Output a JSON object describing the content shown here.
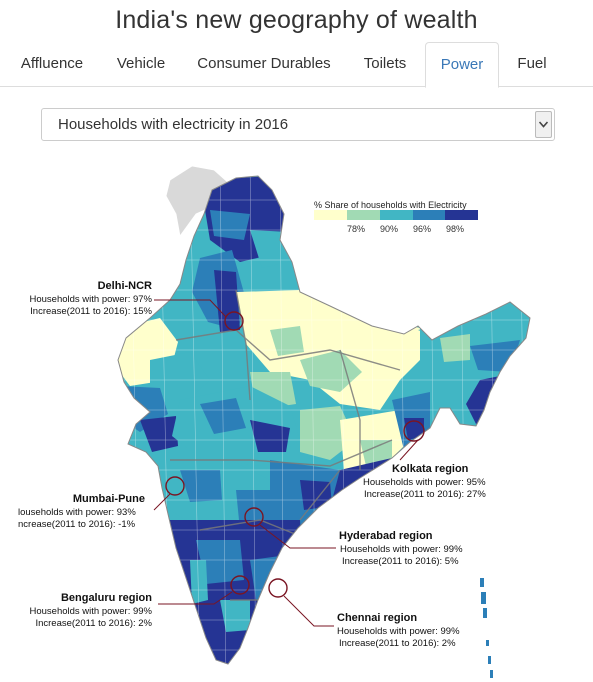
{
  "page": {
    "title": "India's new geography of wealth"
  },
  "tabs": [
    {
      "label": "Affluence",
      "active": false
    },
    {
      "label": "Vehicle",
      "active": false
    },
    {
      "label": "Consumer Durables",
      "active": false
    },
    {
      "label": "Toilets",
      "active": false
    },
    {
      "label": "Power",
      "active": true
    },
    {
      "label": "Fuel",
      "active": false
    }
  ],
  "dropdown": {
    "selected": "Households with electricity in 2016"
  },
  "legend": {
    "title": "% Share of households with Electricity",
    "ticks": [
      "78%",
      "90%",
      "96%",
      "98%"
    ],
    "colors": [
      "#ffffcc",
      "#a1dab4",
      "#41b6c4",
      "#2c7fb8",
      "#253494"
    ]
  },
  "regions": [
    {
      "name": "Delhi-NCR",
      "line1": "Households with power: 97%",
      "line2": "Increase(2011 to 2016): 15%"
    },
    {
      "name": "Mumbai-Pune",
      "line1": "louseholds with power: 93%",
      "line2": "ncrease(2011 to 2016): -1%"
    },
    {
      "name": "Bengaluru region",
      "line1": "Households with power: 99%",
      "line2": "Increase(2011 to 2016): 2%"
    },
    {
      "name": "Kolkata region",
      "line1": "Households with power: 95%",
      "line2": "Increase(2011 to 2016): 27%"
    },
    {
      "name": "Hyderabad region",
      "line1": "Households with power: 99%",
      "line2": "Increase(2011 to 2016): 5%"
    },
    {
      "name": "Chennai region",
      "line1": "Households with power: 99%",
      "line2": "Increase(2011 to 2016): 2%"
    }
  ]
}
